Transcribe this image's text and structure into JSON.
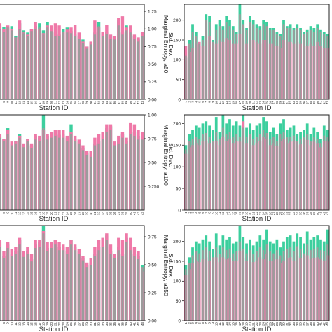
{
  "colors": {
    "teal": "#3ccf9e",
    "gray": "#9c9c9c",
    "pink": "#ef79a8",
    "frame": "#222222"
  },
  "chart_data": [
    {
      "id": "entropy-a50",
      "type": "bar",
      "overlay": true,
      "title": "",
      "xlabel": "Station ID",
      "ylabel": "Marginal Entropy, a50",
      "ylim": [
        0,
        1.35
      ],
      "yticks": [
        "0.00",
        "0.25",
        "0.50",
        "0.75",
        "1.00",
        "1.25"
      ],
      "yaxis_side": "right",
      "categories": [
        "7",
        "8",
        "9",
        "10",
        "11",
        "12",
        "13",
        "14",
        "15",
        "16",
        "17",
        "18",
        "19",
        "20",
        "21",
        "22",
        "23",
        "24",
        "25",
        "26",
        "27",
        "28",
        "29",
        "30",
        "31",
        "32",
        "33",
        "34",
        "35",
        "36",
        "37",
        "38",
        "39",
        "40",
        "41",
        "42",
        "43"
      ],
      "series": [
        {
          "color_key": "teal",
          "values": [
            1.05,
            1.03,
            1.02,
            1.04,
            0.9,
            1.08,
            0.98,
            0.95,
            1.0,
            1.04,
            1.08,
            0.98,
            1.1,
            1.0,
            0.95,
            0.92,
            1.0,
            1.02,
            0.97,
            0.92,
            0.9,
            0.85,
            0.75,
            0.8,
            0.95,
            1.1,
            0.93,
            0.96,
            0.9,
            0.88,
            1.12,
            0.95,
            1.05,
            0.98,
            0.9,
            0.85,
            0.95
          ]
        },
        {
          "color_key": "gray",
          "values": [
            1.0,
            0.96,
            1.02,
            0.98,
            0.88,
            1.0,
            0.94,
            0.9,
            0.97,
            1.0,
            1.02,
            0.92,
            1.02,
            0.97,
            0.9,
            0.9,
            0.96,
            0.95,
            0.94,
            0.9,
            0.86,
            0.8,
            0.72,
            0.78,
            0.92,
            1.04,
            0.9,
            0.93,
            0.86,
            0.85,
            1.05,
            0.92,
            0.98,
            0.95,
            0.86,
            0.82,
            0.9
          ]
        },
        {
          "color_key": "pink",
          "values": [
            1.08,
            1.0,
            1.05,
            1.0,
            0.88,
            1.12,
            0.95,
            0.92,
            1.0,
            1.1,
            1.0,
            0.94,
            1.05,
            1.05,
            1.08,
            1.05,
            0.96,
            0.99,
            1.02,
            1.06,
            0.95,
            0.82,
            0.75,
            0.82,
            1.12,
            1.02,
            0.96,
            1.06,
            0.92,
            0.9,
            1.16,
            1.18,
            1.02,
            1.05,
            0.92,
            0.88,
            0.96
          ]
        }
      ]
    },
    {
      "id": "std-a50",
      "type": "bar",
      "overlay": true,
      "title": "",
      "xlabel": "Station ID",
      "ylabel": "Std. Dev.",
      "ylim": [
        0,
        240
      ],
      "yticks": [
        "0",
        "50",
        "100",
        "150",
        "200"
      ],
      "yaxis_side": "left",
      "categories": [
        "1",
        "2",
        "3",
        "4",
        "5",
        "6",
        "7",
        "8",
        "9",
        "10",
        "11",
        "12",
        "13",
        "14",
        "15",
        "16",
        "17",
        "18",
        "19",
        "20",
        "21",
        "22",
        "23",
        "24",
        "25",
        "26",
        "27",
        "28",
        "29",
        "30",
        "31",
        "32",
        "33",
        "34",
        "35",
        "36",
        "37",
        "38",
        "39",
        "40",
        "41",
        "42",
        "43"
      ],
      "series": [
        {
          "color_key": "teal",
          "values": [
            105,
            150,
            190,
            170,
            135,
            160,
            215,
            210,
            150,
            190,
            200,
            185,
            210,
            200,
            185,
            170,
            240,
            200,
            180,
            210,
            200,
            190,
            185,
            200,
            195,
            180,
            180,
            170,
            165,
            200,
            185,
            190,
            180,
            190,
            180,
            170,
            175,
            185,
            180,
            190,
            175,
            170,
            165
          ]
        },
        {
          "color_key": "gray",
          "values": [
            110,
            140,
            170,
            160,
            140,
            150,
            200,
            195,
            145,
            175,
            185,
            175,
            195,
            185,
            175,
            165,
            215,
            190,
            175,
            195,
            190,
            180,
            175,
            190,
            185,
            175,
            175,
            165,
            160,
            190,
            180,
            180,
            175,
            180,
            175,
            165,
            170,
            175,
            170,
            180,
            170,
            165,
            160
          ]
        },
        {
          "color_key": "pink",
          "values": [
            135,
            120,
            130,
            140,
            145,
            135,
            150,
            160,
            130,
            140,
            150,
            145,
            155,
            150,
            140,
            140,
            165,
            150,
            140,
            155,
            150,
            145,
            140,
            150,
            150,
            140,
            140,
            135,
            130,
            150,
            145,
            145,
            140,
            145,
            140,
            135,
            135,
            140,
            135,
            145,
            135,
            130,
            130
          ]
        }
      ]
    },
    {
      "id": "entropy-a100",
      "type": "bar",
      "overlay": true,
      "title": "",
      "xlabel": "Station ID",
      "ylabel": "Marginal Entropy, a100",
      "ylim": [
        0,
        1.0
      ],
      "yticks": [
        "0.250",
        "0.50",
        "0.75",
        "1.00"
      ],
      "yaxis_side": "right",
      "categories": [
        "7",
        "8",
        "9",
        "10",
        "11",
        "12",
        "13",
        "14",
        "15",
        "16",
        "17",
        "18",
        "19",
        "20",
        "21",
        "22",
        "23",
        "24",
        "25",
        "26",
        "27",
        "28",
        "29",
        "30",
        "31",
        "32",
        "33",
        "34",
        "35",
        "36",
        "37",
        "38",
        "39",
        "40",
        "41",
        "42",
        "43"
      ],
      "series": [
        {
          "color_key": "teal",
          "values": [
            0.8,
            0.74,
            0.86,
            0.7,
            0.72,
            0.8,
            0.69,
            0.75,
            0.68,
            0.78,
            0.76,
            1.0,
            0.78,
            0.8,
            0.82,
            0.79,
            0.8,
            0.76,
            0.9,
            0.75,
            0.72,
            0.65,
            0.6,
            0.58,
            0.7,
            0.72,
            0.78,
            0.86,
            0.88,
            0.7,
            0.72,
            0.8,
            0.72,
            0.85,
            0.82,
            0.78,
            0.78
          ]
        },
        {
          "color_key": "gray",
          "values": [
            0.76,
            0.72,
            0.8,
            0.68,
            0.7,
            0.76,
            0.66,
            0.72,
            0.65,
            0.74,
            0.72,
            0.86,
            0.74,
            0.76,
            0.78,
            0.76,
            0.76,
            0.72,
            0.8,
            0.72,
            0.7,
            0.63,
            0.58,
            0.56,
            0.68,
            0.7,
            0.75,
            0.82,
            0.84,
            0.68,
            0.7,
            0.76,
            0.7,
            0.8,
            0.78,
            0.74,
            0.74
          ]
        },
        {
          "color_key": "pink",
          "values": [
            0.8,
            0.75,
            0.84,
            0.72,
            0.72,
            0.78,
            0.7,
            0.75,
            0.7,
            0.8,
            0.78,
            0.84,
            0.8,
            0.82,
            0.84,
            0.84,
            0.84,
            0.78,
            0.82,
            0.78,
            0.74,
            0.68,
            0.62,
            0.62,
            0.76,
            0.8,
            0.82,
            0.9,
            0.9,
            0.72,
            0.78,
            0.82,
            0.76,
            0.92,
            0.9,
            0.84,
            0.82
          ]
        }
      ]
    },
    {
      "id": "std-a100",
      "type": "bar",
      "overlay": true,
      "title": "",
      "xlabel": "Station ID",
      "ylabel": "Std. Dev.",
      "ylim": [
        0,
        220
      ],
      "yticks": [
        "0",
        "50",
        "100",
        "150",
        "200"
      ],
      "yaxis_side": "left",
      "categories": [
        "1",
        "2",
        "3",
        "4",
        "5",
        "6",
        "7",
        "8",
        "9",
        "10",
        "11",
        "12",
        "13",
        "14",
        "15",
        "16",
        "17",
        "18",
        "19",
        "20",
        "21",
        "22",
        "23",
        "24",
        "25",
        "26",
        "27",
        "28",
        "29",
        "30",
        "31",
        "32",
        "33",
        "34",
        "35",
        "36",
        "37",
        "38",
        "39",
        "40",
        "41",
        "42",
        "43"
      ],
      "series": [
        {
          "color_key": "teal",
          "values": [
            150,
            175,
            185,
            195,
            190,
            200,
            205,
            195,
            185,
            215,
            180,
            230,
            200,
            210,
            195,
            205,
            195,
            225,
            190,
            200,
            185,
            195,
            200,
            215,
            205,
            180,
            190,
            175,
            200,
            210,
            185,
            190,
            195,
            175,
            180,
            185,
            200,
            175,
            190,
            180,
            165,
            195,
            185
          ]
        },
        {
          "color_key": "gray",
          "values": [
            140,
            160,
            165,
            170,
            165,
            175,
            178,
            170,
            160,
            180,
            165,
            190,
            175,
            180,
            170,
            175,
            170,
            190,
            170,
            175,
            165,
            170,
            175,
            185,
            178,
            165,
            170,
            160,
            175,
            180,
            168,
            170,
            172,
            160,
            165,
            168,
            175,
            160,
            168,
            165,
            155,
            172,
            168
          ]
        },
        {
          "color_key": "pink",
          "values": [
            130,
            145,
            150,
            155,
            150,
            160,
            160,
            155,
            145,
            160,
            150,
            170,
            160,
            165,
            155,
            160,
            158,
            205,
            155,
            160,
            150,
            155,
            160,
            170,
            165,
            150,
            155,
            148,
            160,
            165,
            155,
            158,
            160,
            150,
            152,
            155,
            162,
            150,
            158,
            155,
            145,
            160,
            158
          ]
        }
      ]
    },
    {
      "id": "entropy-a150",
      "type": "bar",
      "overlay": true,
      "title": "",
      "xlabel": "Station ID",
      "ylabel": "Marginal Entropy, a150",
      "ylim": [
        0,
        0.85
      ],
      "yticks": [
        "0.00",
        "0.25",
        "0.50",
        "0.75"
      ],
      "yaxis_side": "right",
      "categories": [
        "7",
        "8",
        "9",
        "10",
        "11",
        "12",
        "13",
        "14",
        "15",
        "16",
        "17",
        "18",
        "19",
        "20",
        "21",
        "22",
        "23",
        "24",
        "25",
        "26",
        "27",
        "28",
        "29",
        "30",
        "31",
        "32",
        "33",
        "34",
        "35",
        "36",
        "37",
        "38",
        "39",
        "40",
        "41",
        "42",
        "43"
      ],
      "series": [
        {
          "color_key": "teal",
          "values": [
            0.7,
            0.58,
            0.68,
            0.6,
            0.62,
            0.72,
            0.6,
            0.62,
            0.55,
            0.68,
            0.7,
            0.85,
            0.65,
            0.68,
            0.72,
            0.66,
            0.66,
            0.62,
            0.72,
            0.66,
            0.62,
            0.56,
            0.5,
            0.52,
            0.6,
            0.66,
            0.7,
            0.76,
            0.62,
            0.58,
            0.66,
            0.6,
            0.74,
            0.66,
            0.6,
            0.58,
            0.5
          ]
        },
        {
          "color_key": "gray",
          "values": [
            0.66,
            0.56,
            0.65,
            0.58,
            0.6,
            0.68,
            0.57,
            0.6,
            0.53,
            0.65,
            0.66,
            0.78,
            0.62,
            0.65,
            0.68,
            0.63,
            0.63,
            0.6,
            0.68,
            0.63,
            0.6,
            0.54,
            0.48,
            0.5,
            0.58,
            0.63,
            0.66,
            0.72,
            0.6,
            0.56,
            0.63,
            0.58,
            0.7,
            0.63,
            0.58,
            0.55,
            0.48
          ]
        },
        {
          "color_key": "pink",
          "values": [
            0.72,
            0.62,
            0.7,
            0.64,
            0.66,
            0.74,
            0.62,
            0.66,
            0.6,
            0.72,
            0.72,
            0.8,
            0.7,
            0.7,
            0.72,
            0.7,
            0.68,
            0.66,
            0.72,
            0.68,
            0.64,
            0.58,
            0.52,
            0.56,
            0.66,
            0.72,
            0.74,
            0.78,
            0.68,
            0.6,
            0.74,
            0.72,
            0.78,
            0.74,
            0.66,
            0.62,
            0.44
          ]
        }
      ]
    },
    {
      "id": "std-a150",
      "type": "bar",
      "overlay": true,
      "title": "",
      "xlabel": "Station ID",
      "ylabel": "Std. Dev.",
      "ylim": [
        0,
        240
      ],
      "yticks": [
        "0",
        "50",
        "100",
        "150",
        "200"
      ],
      "yaxis_side": "left",
      "categories": [
        "1",
        "2",
        "3",
        "4",
        "5",
        "6",
        "7",
        "8",
        "9",
        "10",
        "11",
        "12",
        "13",
        "14",
        "15",
        "16",
        "17",
        "18",
        "19",
        "20",
        "21",
        "22",
        "23",
        "24",
        "25",
        "26",
        "27",
        "28",
        "29",
        "30",
        "31",
        "32",
        "33",
        "34",
        "35",
        "36",
        "37",
        "38",
        "39",
        "40",
        "41",
        "42",
        "43"
      ],
      "series": [
        {
          "color_key": "teal",
          "values": [
            140,
            160,
            185,
            200,
            195,
            205,
            215,
            200,
            180,
            220,
            190,
            215,
            205,
            210,
            195,
            200,
            240,
            210,
            195,
            205,
            190,
            200,
            215,
            205,
            230,
            200,
            195,
            205,
            185,
            200,
            210,
            215,
            200,
            220,
            210,
            195,
            225,
            205,
            210,
            215,
            205,
            200,
            230
          ]
        },
        {
          "color_key": "gray",
          "values": [
            130,
            145,
            165,
            175,
            170,
            178,
            185,
            175,
            160,
            185,
            168,
            185,
            178,
            182,
            170,
            175,
            200,
            182,
            170,
            178,
            168,
            175,
            185,
            178,
            192,
            175,
            170,
            178,
            165,
            175,
            182,
            185,
            175,
            188,
            182,
            170,
            192,
            178,
            182,
            185,
            178,
            175,
            192
          ]
        },
        {
          "color_key": "pink",
          "values": [
            115,
            130,
            145,
            152,
            148,
            155,
            160,
            152,
            140,
            160,
            148,
            160,
            155,
            158,
            150,
            152,
            175,
            158,
            150,
            155,
            148,
            152,
            160,
            155,
            168,
            152,
            150,
            155,
            145,
            152,
            158,
            160,
            152,
            162,
            158,
            150,
            165,
            155,
            158,
            160,
            155,
            152,
            165
          ]
        }
      ]
    }
  ]
}
